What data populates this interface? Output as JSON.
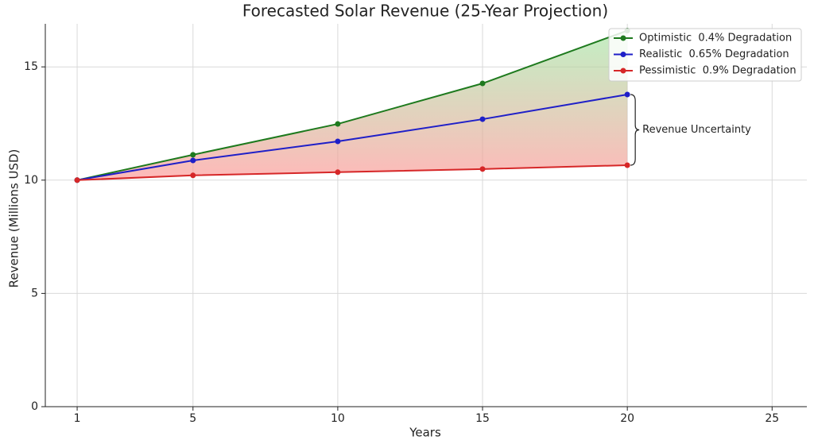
{
  "chart_data": {
    "type": "line",
    "title": "Forecasted Solar Revenue (25-Year Projection)",
    "x_label": "Years",
    "y_label": "Revenue (Millions USD)",
    "x": [
      1,
      5,
      10,
      15,
      20
    ],
    "series": [
      {
        "name": "Optimistic  0.4% Degradation",
        "color": "#1e7a1e",
        "values": [
          10.0,
          11.12,
          12.48,
          14.27,
          16.6
        ]
      },
      {
        "name": "Realistic  0.65% Degradation",
        "color": "#1f1fc8",
        "values": [
          10.0,
          10.87,
          11.71,
          12.69,
          13.78
        ]
      },
      {
        "name": "Pessimistic  0.9% Degradation",
        "color": "#d62728",
        "values": [
          10.0,
          10.21,
          10.35,
          10.49,
          10.66
        ]
      }
    ],
    "annotation": "Revenue Uncertainty",
    "xlim": [
      -0.1,
      26.2
    ],
    "xticks": [
      1,
      5,
      10,
      15,
      20,
      25
    ],
    "ylim": [
      0,
      16.9
    ],
    "yticks": [
      0,
      5,
      10,
      15
    ],
    "grid": true,
    "legend": "upper right"
  }
}
